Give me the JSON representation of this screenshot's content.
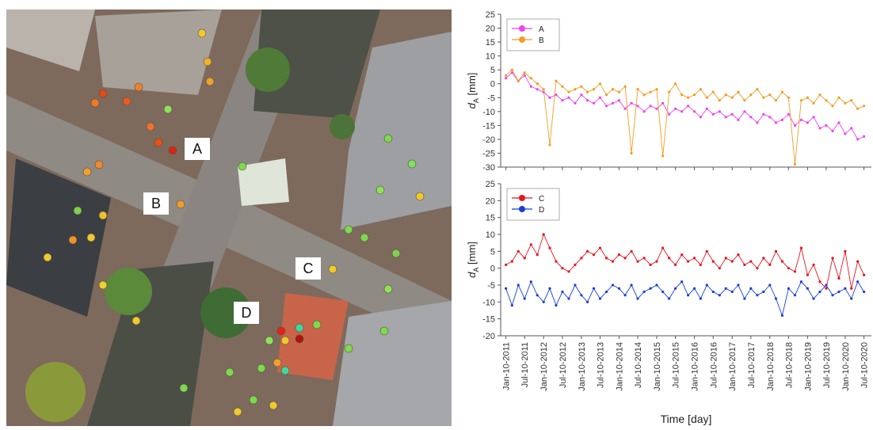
{
  "map": {
    "labels": [
      "A",
      "B",
      "C",
      "D"
    ]
  },
  "chart_data": [
    {
      "type": "line",
      "y_label": {
        "symbol": "d",
        "subscript": "A",
        "unit": "[mm]"
      },
      "x": [
        "2011-01-10",
        "2011-03-10",
        "2011-05-10",
        "2011-07-10",
        "2011-09-10",
        "2011-11-10",
        "2012-01-10",
        "2012-03-10",
        "2012-05-10",
        "2012-07-10",
        "2012-09-10",
        "2012-11-10",
        "2013-01-10",
        "2013-03-10",
        "2013-05-10",
        "2013-07-10",
        "2013-09-10",
        "2013-11-10",
        "2014-01-10",
        "2014-03-10",
        "2014-05-10",
        "2014-07-10",
        "2014-09-10",
        "2014-11-10",
        "2015-01-10",
        "2015-03-10",
        "2015-05-10",
        "2015-07-10",
        "2015-09-10",
        "2015-11-10",
        "2016-01-10",
        "2016-03-10",
        "2016-05-10",
        "2016-07-10",
        "2016-09-10",
        "2016-11-10",
        "2017-01-10",
        "2017-03-10",
        "2017-05-10",
        "2017-07-10",
        "2017-09-10",
        "2017-11-10",
        "2018-01-10",
        "2018-03-10",
        "2018-05-10",
        "2018-07-10",
        "2018-09-10",
        "2018-11-10",
        "2019-01-10",
        "2019-03-10",
        "2019-05-10",
        "2019-07-10",
        "2019-09-10",
        "2019-11-10",
        "2020-01-10",
        "2020-03-10",
        "2020-05-10",
        "2020-07-10"
      ],
      "series": [
        {
          "name": "A",
          "color": "#ee44ee",
          "values": [
            2,
            4,
            1,
            3,
            -1,
            -2,
            -3,
            -5,
            -4,
            -6,
            -5,
            -7,
            -4,
            -6,
            -7,
            -5,
            -8,
            -7,
            -6,
            -9,
            -7,
            -8,
            -10,
            -8,
            -9,
            -7,
            -11,
            -9,
            -10,
            -8,
            -10,
            -12,
            -9,
            -11,
            -10,
            -12,
            -11,
            -13,
            -10,
            -12,
            -14,
            -11,
            -12,
            -14,
            -13,
            -11,
            -15,
            -13,
            -14,
            -12,
            -16,
            -15,
            -17,
            -14,
            -18,
            -16,
            -20,
            -19
          ]
        },
        {
          "name": "B",
          "color": "#f39c24",
          "values": [
            3,
            5,
            1,
            4,
            2,
            0,
            -2,
            -22,
            1,
            -1,
            -3,
            -2,
            -1,
            -3,
            -2,
            0,
            -4,
            -2,
            -3,
            -1,
            -25,
            -2,
            -4,
            -3,
            -2,
            -26,
            -3,
            0,
            -4,
            -5,
            -4,
            -2,
            -5,
            -3,
            -6,
            -4,
            -5,
            -3,
            -6,
            -4,
            -2,
            -5,
            -4,
            -6,
            -3,
            -5,
            -29,
            -6,
            -5,
            -7,
            -4,
            -6,
            -8,
            -5,
            -7,
            -6,
            -9,
            -8
          ]
        }
      ],
      "xlim": [
        "2010-11-20",
        "2020-09-20"
      ],
      "xticks": [
        "2011-01-10",
        "2011-07-10",
        "2012-01-10",
        "2012-07-10",
        "2013-01-10",
        "2013-07-10",
        "2014-01-10",
        "2014-07-10",
        "2015-01-10",
        "2015-07-10",
        "2016-01-10",
        "2016-07-10",
        "2017-01-10",
        "2017-07-10",
        "2018-01-10",
        "2018-07-10",
        "2019-01-10",
        "2019-07-10",
        "2020-01-10",
        "2020-07-10"
      ],
      "ylim": [
        -30,
        25
      ],
      "yticks": [
        -30,
        -25,
        -20,
        -15,
        -10,
        -5,
        0,
        5,
        10,
        15,
        20,
        25
      ],
      "legend": "upper left"
    },
    {
      "type": "line",
      "y_label": {
        "symbol": "d",
        "subscript": "A",
        "unit": "[mm]"
      },
      "x_label": "Time [day]",
      "x": [
        "2011-01-10",
        "2011-03-10",
        "2011-05-10",
        "2011-07-10",
        "2011-09-10",
        "2011-11-10",
        "2012-01-10",
        "2012-03-10",
        "2012-05-10",
        "2012-07-10",
        "2012-09-10",
        "2012-11-10",
        "2013-01-10",
        "2013-03-10",
        "2013-05-10",
        "2013-07-10",
        "2013-09-10",
        "2013-11-10",
        "2014-01-10",
        "2014-03-10",
        "2014-05-10",
        "2014-07-10",
        "2014-09-10",
        "2014-11-10",
        "2015-01-10",
        "2015-03-10",
        "2015-05-10",
        "2015-07-10",
        "2015-09-10",
        "2015-11-10",
        "2016-01-10",
        "2016-03-10",
        "2016-05-10",
        "2016-07-10",
        "2016-09-10",
        "2016-11-10",
        "2017-01-10",
        "2017-03-10",
        "2017-05-10",
        "2017-07-10",
        "2017-09-10",
        "2017-11-10",
        "2018-01-10",
        "2018-03-10",
        "2018-05-10",
        "2018-07-10",
        "2018-09-10",
        "2018-11-10",
        "2019-01-10",
        "2019-03-10",
        "2019-05-10",
        "2019-07-10",
        "2019-09-10",
        "2019-11-10",
        "2020-01-10",
        "2020-03-10",
        "2020-05-10",
        "2020-07-10"
      ],
      "series": [
        {
          "name": "C",
          "color": "#e8141e",
          "values": [
            1,
            2,
            5,
            3,
            7,
            4,
            10,
            6,
            2,
            0,
            -1,
            1,
            3,
            5,
            4,
            6,
            3,
            2,
            4,
            3,
            5,
            2,
            3,
            1,
            2,
            6,
            3,
            1,
            4,
            2,
            3,
            1,
            5,
            2,
            0,
            3,
            2,
            4,
            1,
            2,
            0,
            3,
            1,
            5,
            2,
            0,
            -1,
            6,
            -2,
            1,
            -4,
            -6,
            3,
            -3,
            5,
            -6,
            2,
            -2
          ]
        },
        {
          "name": "D",
          "color": "#1a3fd6",
          "values": [
            -6,
            -11,
            -5,
            -9,
            -4,
            -8,
            -10,
            -6,
            -11,
            -7,
            -9,
            -5,
            -8,
            -10,
            -6,
            -9,
            -7,
            -5,
            -6,
            -8,
            -5,
            -9,
            -7,
            -6,
            -5,
            -7,
            -9,
            -6,
            -4,
            -8,
            -6,
            -9,
            -5,
            -7,
            -8,
            -6,
            -7,
            -5,
            -9,
            -6,
            -8,
            -7,
            -5,
            -9,
            -14,
            -6,
            -8,
            -4,
            -6,
            -9,
            -7,
            -5,
            -8,
            -7,
            -6,
            -9,
            -4,
            -7
          ]
        }
      ],
      "xlim": [
        "2010-11-20",
        "2020-09-20"
      ],
      "xticks": [
        {
          "value": "2011-01-10",
          "label": "Jan-10-2011"
        },
        {
          "value": "2011-07-10",
          "label": "Jul-10-2011"
        },
        {
          "value": "2012-01-10",
          "label": "Jan-10-2012"
        },
        {
          "value": "2012-07-10",
          "label": "Jul-10-2012"
        },
        {
          "value": "2013-01-10",
          "label": "Jan-10-2013"
        },
        {
          "value": "2013-07-10",
          "label": "Jul-10-2013"
        },
        {
          "value": "2014-01-10",
          "label": "Jan-10-2014"
        },
        {
          "value": "2014-07-10",
          "label": "Jul-10-2014"
        },
        {
          "value": "2015-01-10",
          "label": "Jan-10-2015"
        },
        {
          "value": "2015-07-10",
          "label": "Jul-10-2015"
        },
        {
          "value": "2016-01-10",
          "label": "Jan-10-2016"
        },
        {
          "value": "2016-07-10",
          "label": "Jul-10-2016"
        },
        {
          "value": "2017-01-10",
          "label": "Jan-10-2017"
        },
        {
          "value": "2017-07-10",
          "label": "Jul-10-2017"
        },
        {
          "value": "2018-01-10",
          "label": "Jan-10-2018"
        },
        {
          "value": "2018-07-10",
          "label": "Jul-10-2018"
        },
        {
          "value": "2019-01-10",
          "label": "Jan-10-2019"
        },
        {
          "value": "2019-07-10",
          "label": "Jul-10-2019"
        },
        {
          "value": "2020-01-10",
          "label": "Jan-10-2020"
        },
        {
          "value": "2020-07-10",
          "label": "Jul-10-2020"
        }
      ],
      "ylim": [
        -20,
        25
      ],
      "yticks": [
        -20,
        -15,
        -10,
        -5,
        0,
        5,
        10,
        15,
        20,
        25
      ],
      "legend": "upper left"
    }
  ]
}
